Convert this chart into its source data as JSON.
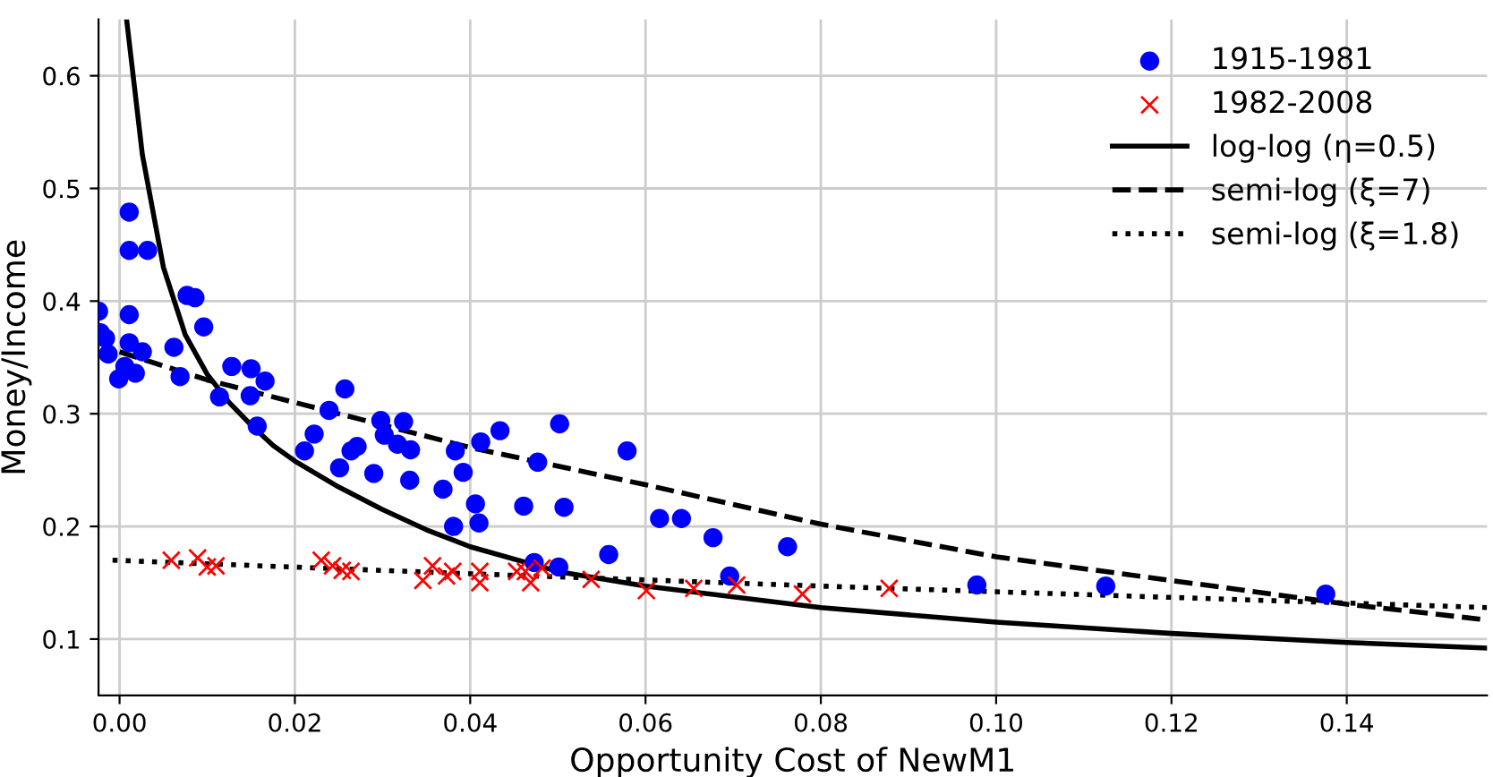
{
  "chart_data": {
    "type": "scatter",
    "xlabel": "Opportunity Cost of NewM1",
    "ylabel": "Money/Income",
    "xlim": [
      -0.0024,
      0.156
    ],
    "ylim": [
      0.05,
      0.65
    ],
    "xticks": [
      {
        "value": 0,
        "label": "0.00"
      },
      {
        "value": 0.02,
        "label": "0.02"
      },
      {
        "value": 0.04,
        "label": "0.04"
      },
      {
        "value": 0.06,
        "label": "0.06"
      },
      {
        "value": 0.08,
        "label": "0.08"
      },
      {
        "value": 0.1,
        "label": "0.10"
      },
      {
        "value": 0.12,
        "label": "0.12"
      },
      {
        "value": 0.14,
        "label": "0.14"
      }
    ],
    "yticks": [
      0.1,
      0.2,
      0.3,
      0.4,
      0.5,
      0.6
    ],
    "grid": true,
    "legend": "top right",
    "series": [
      {
        "name": "1915-1981",
        "marker": "circle",
        "color": "#0000ff",
        "x": [
          -0.0024,
          -0.0022,
          -0.0016,
          -0.0013,
          -0.0001,
          0.0011,
          0.0011,
          0.0032,
          0.0011,
          0.0011,
          0.0006,
          0.0018,
          0.0026,
          0.0062,
          0.0069,
          0.0077,
          0.0086,
          0.0096,
          0.0114,
          0.0128,
          0.015,
          0.0149,
          0.0157,
          0.0166,
          0.0211,
          0.0222,
          0.0239,
          0.0257,
          0.0251,
          0.0264,
          0.0271,
          0.029,
          0.0298,
          0.0302,
          0.0317,
          0.0324,
          0.0331,
          0.0332,
          0.0369,
          0.0383,
          0.0381,
          0.0392,
          0.0406,
          0.041,
          0.0412,
          0.0434,
          0.0461,
          0.0477,
          0.0502,
          0.0507,
          0.0473,
          0.0501,
          0.0558,
          0.0579,
          0.0616,
          0.0641,
          0.0677,
          0.0696,
          0.0762,
          0.0978,
          0.1125,
          0.1376
        ],
        "values": [
          0.391,
          0.372,
          0.367,
          0.353,
          0.331,
          0.479,
          0.445,
          0.445,
          0.388,
          0.363,
          0.342,
          0.336,
          0.355,
          0.359,
          0.333,
          0.405,
          0.403,
          0.377,
          0.315,
          0.342,
          0.34,
          0.316,
          0.289,
          0.329,
          0.267,
          0.282,
          0.303,
          0.322,
          0.252,
          0.267,
          0.271,
          0.247,
          0.294,
          0.281,
          0.273,
          0.293,
          0.241,
          0.268,
          0.233,
          0.267,
          0.2,
          0.248,
          0.22,
          0.203,
          0.275,
          0.285,
          0.218,
          0.257,
          0.291,
          0.217,
          0.168,
          0.164,
          0.175,
          0.267,
          0.207,
          0.207,
          0.19,
          0.156,
          0.182,
          0.148,
          0.147,
          0.14
        ]
      },
      {
        "name": "1982-2008",
        "marker": "cross",
        "color": "#ff0000",
        "x": [
          0.0059,
          0.0089,
          0.01,
          0.011,
          0.023,
          0.0243,
          0.0254,
          0.0264,
          0.0346,
          0.0357,
          0.0373,
          0.038,
          0.0411,
          0.0411,
          0.0453,
          0.0463,
          0.0469,
          0.0482,
          0.0538,
          0.0601,
          0.0655,
          0.0704,
          0.0779,
          0.0878
        ],
        "values": [
          0.17,
          0.172,
          0.164,
          0.165,
          0.17,
          0.165,
          0.161,
          0.16,
          0.152,
          0.165,
          0.156,
          0.16,
          0.16,
          0.15,
          0.16,
          0.16,
          0.15,
          0.163,
          0.153,
          0.143,
          0.145,
          0.148,
          0.14,
          0.145
        ]
      },
      {
        "name": "log-log (η=0.5)",
        "type": "line",
        "line_style": "solid",
        "color": "#000000",
        "x": [
          0.0008,
          0.0026,
          0.005,
          0.0075,
          0.01,
          0.0125,
          0.015,
          0.0175,
          0.02,
          0.025,
          0.03,
          0.035,
          0.04,
          0.05,
          0.06,
          0.08,
          0.1,
          0.12,
          0.14,
          0.156
        ],
        "values": [
          0.65,
          0.53,
          0.43,
          0.37,
          0.335,
          0.31,
          0.29,
          0.272,
          0.258,
          0.235,
          0.215,
          0.197,
          0.182,
          0.16,
          0.147,
          0.128,
          0.115,
          0.105,
          0.097,
          0.092
        ]
      },
      {
        "name": "semi-log (ξ=7)",
        "type": "line",
        "line_style": "dashed",
        "color": "#000000",
        "x": [
          0,
          0.01,
          0.02,
          0.03,
          0.04,
          0.06,
          0.08,
          0.1,
          0.12,
          0.14,
          0.156
        ],
        "values": [
          0.355,
          0.33,
          0.31,
          0.29,
          0.27,
          0.237,
          0.202,
          0.173,
          0.152,
          0.131,
          0.117
        ]
      },
      {
        "name": "semi-log (ξ=1.8)",
        "type": "line",
        "line_style": "dotted",
        "color": "#000000",
        "x": [
          -0.0008,
          0.04,
          0.08,
          0.12,
          0.156
        ],
        "values": [
          0.17,
          0.158,
          0.147,
          0.137,
          0.128
        ]
      }
    ]
  }
}
